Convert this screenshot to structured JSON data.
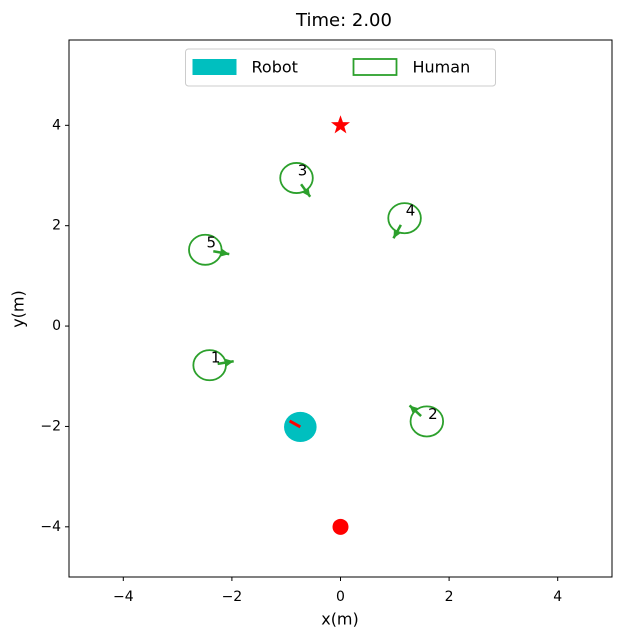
{
  "chart_data": {
    "type": "scatter",
    "title": "Time: 2.00",
    "x_label": "x(m)",
    "y_label": "y(m)",
    "xlim": [
      -5,
      5
    ],
    "ylim": [
      -5,
      5.7
    ],
    "xticks": [
      {
        "value": -4,
        "label": "−4"
      },
      {
        "value": -2,
        "label": "−2"
      },
      0,
      2,
      4
    ],
    "yticks": [
      {
        "value": -4,
        "label": "−4"
      },
      {
        "value": -2,
        "label": "−2"
      },
      0,
      2,
      4
    ],
    "legend": "upper center",
    "robot": {
      "name": "Robot",
      "color": "#00bfbf",
      "heading_color": "#ff0000",
      "x": -0.74,
      "y": -2.01,
      "radius": 0.3,
      "heading": 149
    },
    "humans": {
      "name": "Human",
      "color": "#2ca02c",
      "ids": [
        "1",
        "2",
        "3",
        "4",
        "5"
      ],
      "x": [
        -2.41,
        1.59,
        -0.81,
        1.18,
        -2.49
      ],
      "y": [
        -0.78,
        -1.9,
        2.95,
        2.15,
        1.52
      ],
      "radius": 0.3,
      "heading": [
        10,
        135,
        -56,
        -117,
        -11
      ]
    },
    "goal": {
      "x": 0,
      "y": 4,
      "color": "#ff0000"
    },
    "start": {
      "x": 0,
      "y": -4,
      "color": "#ff0000"
    }
  }
}
